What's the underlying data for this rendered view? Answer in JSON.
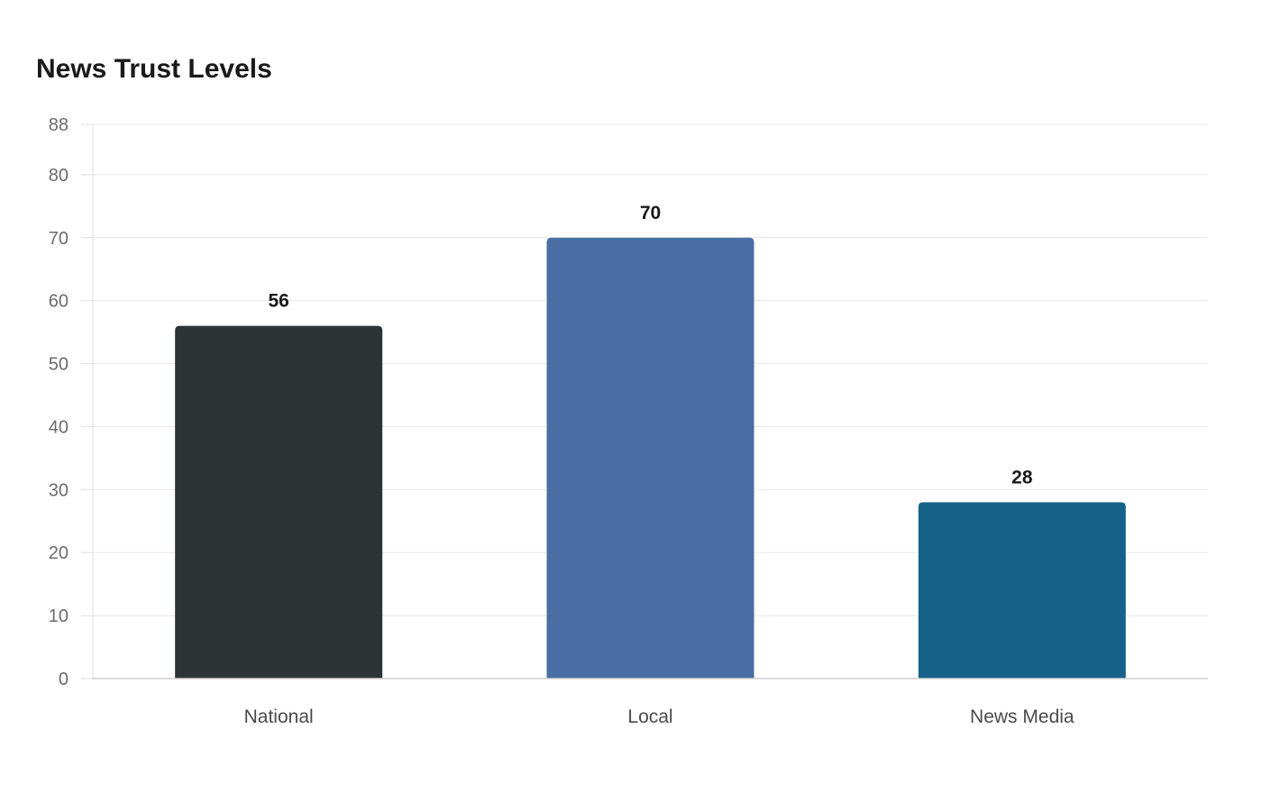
{
  "chart_data": {
    "type": "bar",
    "title": "News Trust Levels",
    "categories": [
      "National",
      "Local",
      "News Media"
    ],
    "values": [
      56,
      70,
      28
    ],
    "colors": [
      "#2e3436",
      "#4a6ea3",
      "#166188"
    ],
    "ylim": [
      0,
      88
    ],
    "yticks": [
      "0",
      "10",
      "20",
      "30",
      "40",
      "50",
      "60",
      "70",
      "80",
      "88"
    ],
    "value_labels": [
      "56",
      "70",
      "28"
    ],
    "grid": true,
    "xlabel": "",
    "ylabel": ""
  }
}
